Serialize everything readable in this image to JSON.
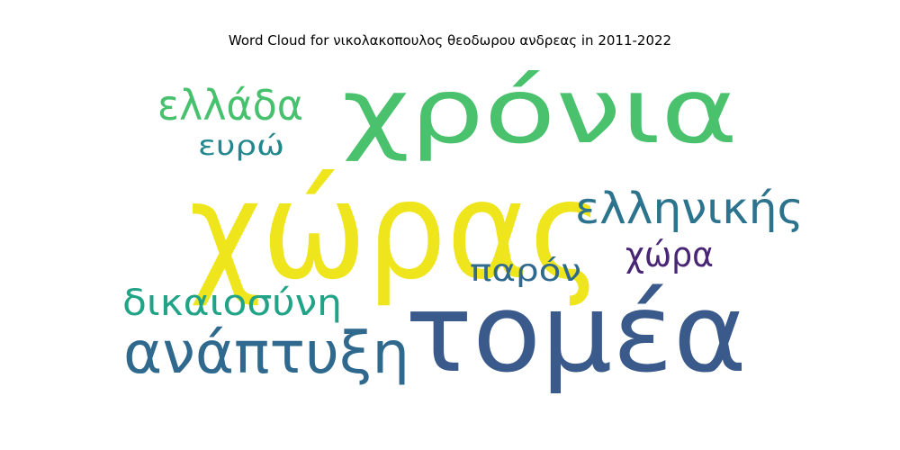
{
  "chart_data": {
    "type": "wordcloud",
    "title": "Word Cloud for νικολακοπουλος θεοδωρου ανδρεας in 2011-2022",
    "words": [
      {
        "text": "χώρας",
        "color": "#efe51c"
      },
      {
        "text": "τομέα",
        "color": "#3b5a8c"
      },
      {
        "text": "χρόνια",
        "color": "#4ac16d"
      },
      {
        "text": "ανάπτυξη",
        "color": "#30698e"
      },
      {
        "text": "ελληνικής",
        "color": "#2c738e"
      },
      {
        "text": "δικαιοσύνη",
        "color": "#20a386"
      },
      {
        "text": "ελλάδα",
        "color": "#48c16e"
      },
      {
        "text": "παρόν",
        "color": "#30698e"
      },
      {
        "text": "χώρα",
        "color": "#482575"
      },
      {
        "text": "ευρώ",
        "color": "#23888e"
      }
    ]
  }
}
